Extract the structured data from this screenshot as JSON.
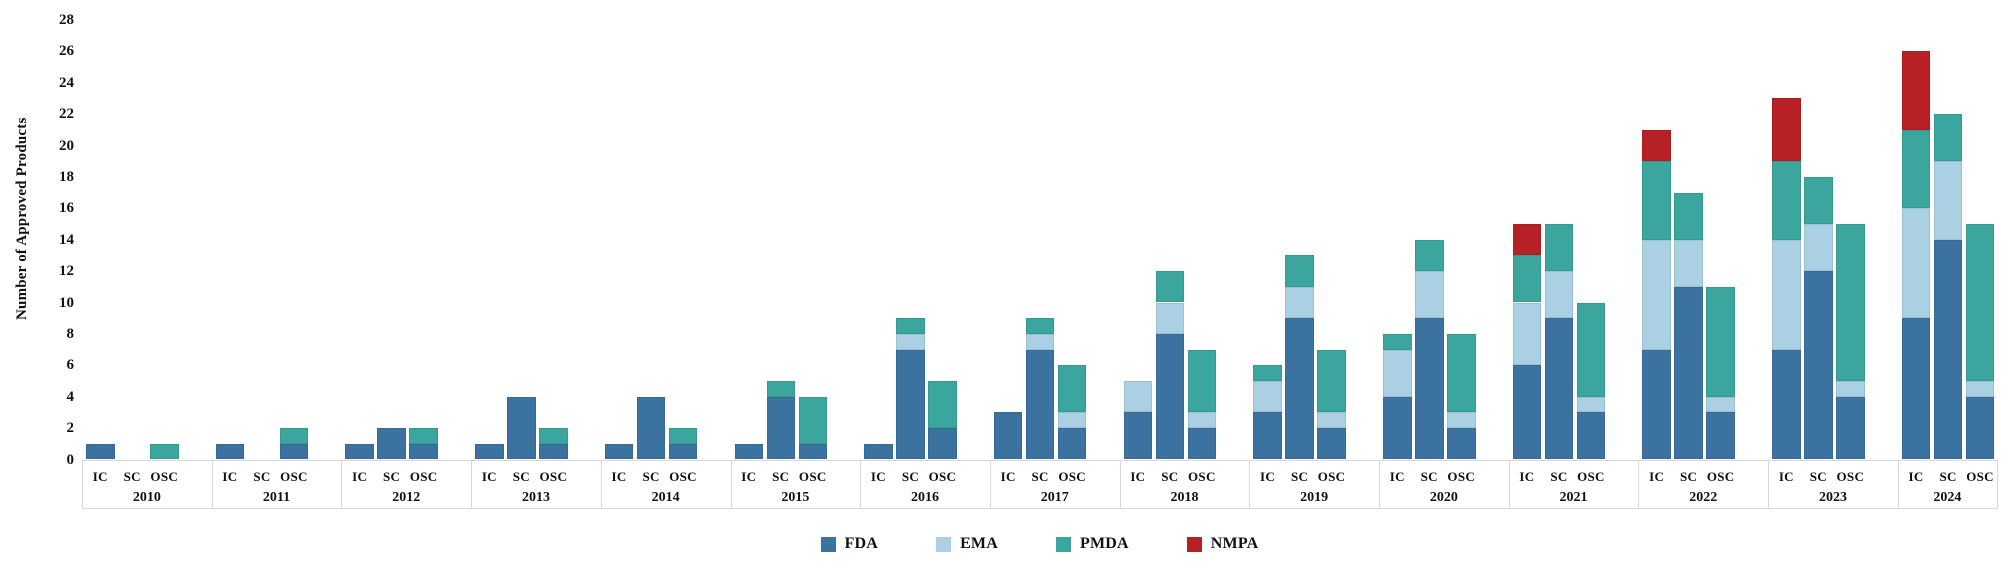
{
  "y_axis": {
    "title": "Number of Approved Products",
    "min": 0,
    "max": 28,
    "tick_step": 2,
    "tick_labels": [
      "0",
      "2",
      "4",
      "6",
      "8",
      "10",
      "12",
      "14",
      "16",
      "18",
      "20",
      "22",
      "24",
      "26",
      "28"
    ]
  },
  "legend": {
    "items": [
      {
        "label": "FDA",
        "color": "#3b72a0"
      },
      {
        "label": "EMA",
        "color": "#abd0e4"
      },
      {
        "label": "PMDA",
        "color": "#3aa69d"
      },
      {
        "label": "NMPA",
        "color": "#b72125"
      }
    ]
  },
  "chart_data": {
    "type": "bar",
    "stacked": true,
    "title": "",
    "xlabel": "",
    "ylabel": "Number of Approved Products",
    "ylim": [
      0,
      28
    ],
    "y_tick_step": 2,
    "grid": false,
    "legend_position": "bottom-center",
    "categories": [
      "2010",
      "2011",
      "2012",
      "2013",
      "2014",
      "2015",
      "2016",
      "2017",
      "2018",
      "2019",
      "2020",
      "2021",
      "2022",
      "2023",
      "2024"
    ],
    "subcategories": [
      "IC",
      "SC",
      "OSC"
    ],
    "series_order": [
      "FDA",
      "EMA",
      "PMDA",
      "NMPA"
    ],
    "series_colors": {
      "FDA": "#3b72a0",
      "EMA": "#abd0e4",
      "PMDA": "#3aa69d",
      "NMPA": "#b72125"
    },
    "values": [
      {
        "year": "2010",
        "IC": [
          1,
          0,
          0,
          0
        ],
        "SC": [
          0,
          0,
          0,
          0
        ],
        "OSC": [
          0,
          0,
          1,
          0
        ]
      },
      {
        "year": "2011",
        "IC": [
          1,
          0,
          0,
          0
        ],
        "SC": [
          0,
          0,
          0,
          0
        ],
        "OSC": [
          1,
          0,
          1,
          0
        ]
      },
      {
        "year": "2012",
        "IC": [
          1,
          0,
          0,
          0
        ],
        "SC": [
          2,
          0,
          0,
          0
        ],
        "OSC": [
          1,
          0,
          1,
          0
        ]
      },
      {
        "year": "2013",
        "IC": [
          1,
          0,
          0,
          0
        ],
        "SC": [
          4,
          0,
          0,
          0
        ],
        "OSC": [
          1,
          0,
          1,
          0
        ]
      },
      {
        "year": "2014",
        "IC": [
          1,
          0,
          0,
          0
        ],
        "SC": [
          4,
          0,
          0,
          0
        ],
        "OSC": [
          1,
          0,
          1,
          0
        ]
      },
      {
        "year": "2015",
        "IC": [
          1,
          0,
          0,
          0
        ],
        "SC": [
          4,
          0,
          1,
          0
        ],
        "OSC": [
          1,
          0,
          3,
          0
        ]
      },
      {
        "year": "2016",
        "IC": [
          1,
          0,
          0,
          0
        ],
        "SC": [
          7,
          1,
          1,
          0
        ],
        "OSC": [
          2,
          0,
          3,
          0
        ]
      },
      {
        "year": "2017",
        "IC": [
          3,
          0,
          0,
          0
        ],
        "SC": [
          7,
          1,
          1,
          0
        ],
        "OSC": [
          2,
          1,
          3,
          0
        ]
      },
      {
        "year": "2018",
        "IC": [
          3,
          2,
          0,
          0
        ],
        "SC": [
          8,
          2,
          2,
          0
        ],
        "OSC": [
          2,
          1,
          4,
          0
        ]
      },
      {
        "year": "2019",
        "IC": [
          3,
          2,
          1,
          0
        ],
        "SC": [
          9,
          2,
          2,
          0
        ],
        "OSC": [
          2,
          1,
          4,
          0
        ]
      },
      {
        "year": "2020",
        "IC": [
          4,
          3,
          1,
          0
        ],
        "SC": [
          9,
          3,
          2,
          0
        ],
        "OSC": [
          2,
          1,
          5,
          0
        ]
      },
      {
        "year": "2021",
        "IC": [
          6,
          4,
          3,
          2
        ],
        "SC": [
          9,
          3,
          3,
          0
        ],
        "OSC": [
          3,
          1,
          6,
          0
        ]
      },
      {
        "year": "2022",
        "IC": [
          7,
          7,
          5,
          2
        ],
        "SC": [
          11,
          3,
          3,
          0
        ],
        "OSC": [
          3,
          1,
          7,
          0
        ]
      },
      {
        "year": "2023",
        "IC": [
          7,
          7,
          5,
          4
        ],
        "SC": [
          12,
          3,
          3,
          0
        ],
        "OSC": [
          4,
          1,
          10,
          0
        ]
      },
      {
        "year": "2024",
        "IC": [
          9,
          7,
          5,
          5
        ],
        "SC": [
          14,
          5,
          3,
          0
        ],
        "OSC": [
          4,
          1,
          10,
          0
        ]
      }
    ]
  }
}
